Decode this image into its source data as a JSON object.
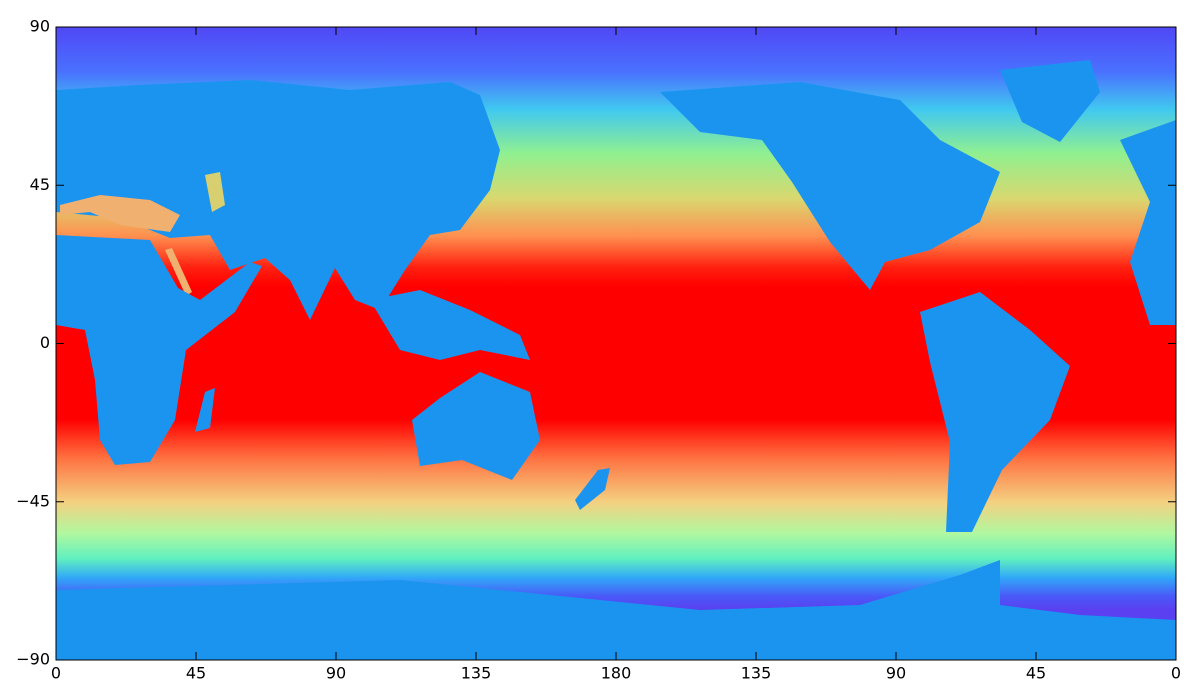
{
  "chart_data": {
    "type": "map",
    "xlim": [
      0,
      360
    ],
    "xticks": [
      0,
      45,
      90,
      135,
      180,
      {
        "value": 225,
        "label": "135"
      },
      {
        "value": 270,
        "label": "90"
      },
      {
        "value": 315,
        "label": "45"
      },
      {
        "value": 360,
        "label": "0"
      }
    ],
    "ylim": [
      -90,
      90
    ],
    "yticks": [
      {
        "value": -90,
        "label": "−90"
      },
      {
        "value": -45,
        "label": "−45"
      },
      0,
      45,
      90
    ]
  }
}
